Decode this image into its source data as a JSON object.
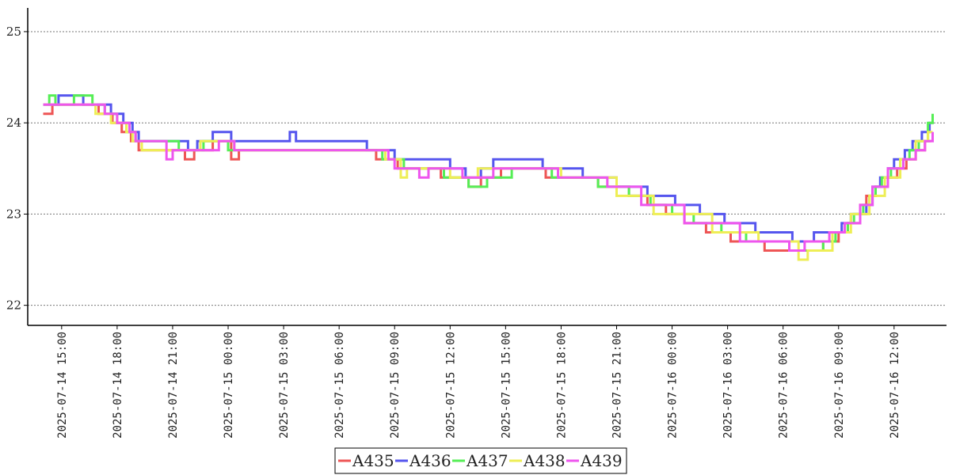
{
  "chart_data": {
    "type": "line",
    "step": true,
    "title": "",
    "xlabel": "",
    "ylabel": "",
    "x_axis": {
      "type": "datetime",
      "start": "2025-07-14 13:10",
      "end": "2025-07-16 14:50",
      "ticks": [
        {
          "t": "2025-07-14 15:00",
          "label": "2025-07-14 15:00"
        },
        {
          "t": "2025-07-14 18:00",
          "label": "2025-07-14 18:00"
        },
        {
          "t": "2025-07-14 21:00",
          "label": "2025-07-14 21:00"
        },
        {
          "t": "2025-07-15 00:00",
          "label": "2025-07-15 00:00"
        },
        {
          "t": "2025-07-15 03:00",
          "label": "2025-07-15 03:00"
        },
        {
          "t": "2025-07-15 06:00",
          "label": "2025-07-15 06:00"
        },
        {
          "t": "2025-07-15 09:00",
          "label": "2025-07-15 09:00"
        },
        {
          "t": "2025-07-15 12:00",
          "label": "2025-07-15 12:00"
        },
        {
          "t": "2025-07-15 15:00",
          "label": "2025-07-15 15:00"
        },
        {
          "t": "2025-07-15 18:00",
          "label": "2025-07-15 18:00"
        },
        {
          "t": "2025-07-15 21:00",
          "label": "2025-07-15 21:00"
        },
        {
          "t": "2025-07-16 00:00",
          "label": "2025-07-16 00:00"
        },
        {
          "t": "2025-07-16 03:00",
          "label": "2025-07-16 03:00"
        },
        {
          "t": "2025-07-16 06:00",
          "label": "2025-07-16 06:00"
        },
        {
          "t": "2025-07-16 09:00",
          "label": "2025-07-16 09:00"
        },
        {
          "t": "2025-07-16 12:00",
          "label": "2025-07-16 12:00"
        }
      ]
    },
    "y_axis": {
      "ylim": [
        21.78,
        25.26
      ],
      "ticks": [
        22,
        23,
        24,
        25
      ],
      "grid": true,
      "grid_style": "dotted"
    },
    "legend": {
      "placement": "bottom-center"
    },
    "series": [
      {
        "name": "A435",
        "color": "#ee5555",
        "points": [
          [
            "2025-07-14 14:00",
            24.1
          ],
          [
            "2025-07-14 14:30",
            24.2
          ],
          [
            "2025-07-14 17:00",
            24.1
          ],
          [
            "2025-07-14 17:45",
            24.0
          ],
          [
            "2025-07-14 18:15",
            23.9
          ],
          [
            "2025-07-14 18:45",
            23.8
          ],
          [
            "2025-07-14 19:10",
            23.7
          ],
          [
            "2025-07-14 21:40",
            23.6
          ],
          [
            "2025-07-14 22:10",
            23.7
          ],
          [
            "2025-07-14 23:10",
            23.8
          ],
          [
            "2025-07-15 00:10",
            23.6
          ],
          [
            "2025-07-15 00:35",
            23.7
          ],
          [
            "2025-07-15 08:00",
            23.6
          ],
          [
            "2025-07-15 09:10",
            23.5
          ],
          [
            "2025-07-15 11:30",
            23.4
          ],
          [
            "2025-07-15 13:00",
            23.3
          ],
          [
            "2025-07-15 13:40",
            23.4
          ],
          [
            "2025-07-15 14:45",
            23.5
          ],
          [
            "2025-07-15 17:10",
            23.4
          ],
          [
            "2025-07-15 20:00",
            23.3
          ],
          [
            "2025-07-15 21:40",
            23.2
          ],
          [
            "2025-07-15 22:40",
            23.1
          ],
          [
            "2025-07-15 23:40",
            23.0
          ],
          [
            "2025-07-16 00:40",
            22.9
          ],
          [
            "2025-07-16 01:50",
            22.8
          ],
          [
            "2025-07-16 03:10",
            22.7
          ],
          [
            "2025-07-16 05:00",
            22.6
          ],
          [
            "2025-07-16 08:10",
            22.7
          ],
          [
            "2025-07-16 09:00",
            22.8
          ],
          [
            "2025-07-16 09:30",
            22.9
          ],
          [
            "2025-07-16 10:10",
            23.1
          ],
          [
            "2025-07-16 10:30",
            23.2
          ],
          [
            "2025-07-16 11:00",
            23.3
          ],
          [
            "2025-07-16 11:40",
            23.4
          ],
          [
            "2025-07-16 12:10",
            23.5
          ],
          [
            "2025-07-16 12:40",
            23.6
          ],
          [
            "2025-07-16 13:10",
            23.7
          ],
          [
            "2025-07-16 13:40",
            23.8
          ],
          [
            "2025-07-16 14:00",
            23.8
          ]
        ]
      },
      {
        "name": "A436",
        "color": "#5555ee",
        "points": [
          [
            "2025-07-14 14:00",
            24.2
          ],
          [
            "2025-07-14 14:50",
            24.3
          ],
          [
            "2025-07-14 16:10",
            24.2
          ],
          [
            "2025-07-14 17:40",
            24.1
          ],
          [
            "2025-07-14 18:20",
            24.0
          ],
          [
            "2025-07-14 18:50",
            23.9
          ],
          [
            "2025-07-14 19:10",
            23.8
          ],
          [
            "2025-07-14 21:50",
            23.7
          ],
          [
            "2025-07-14 22:20",
            23.8
          ],
          [
            "2025-07-14 23:10",
            23.9
          ],
          [
            "2025-07-15 00:10",
            23.8
          ],
          [
            "2025-07-15 03:20",
            23.9
          ],
          [
            "2025-07-15 03:40",
            23.8
          ],
          [
            "2025-07-15 07:30",
            23.7
          ],
          [
            "2025-07-15 09:00",
            23.6
          ],
          [
            "2025-07-15 12:00",
            23.5
          ],
          [
            "2025-07-15 12:50",
            23.4
          ],
          [
            "2025-07-15 13:40",
            23.5
          ],
          [
            "2025-07-15 14:20",
            23.6
          ],
          [
            "2025-07-15 17:00",
            23.5
          ],
          [
            "2025-07-15 19:10",
            23.4
          ],
          [
            "2025-07-15 21:00",
            23.3
          ],
          [
            "2025-07-15 22:40",
            23.2
          ],
          [
            "2025-07-16 00:10",
            23.1
          ],
          [
            "2025-07-16 01:30",
            23.0
          ],
          [
            "2025-07-16 02:50",
            22.9
          ],
          [
            "2025-07-16 04:30",
            22.8
          ],
          [
            "2025-07-16 06:30",
            22.7
          ],
          [
            "2025-07-16 07:40",
            22.8
          ],
          [
            "2025-07-16 09:10",
            22.9
          ],
          [
            "2025-07-16 09:40",
            23.0
          ],
          [
            "2025-07-16 10:30",
            23.1
          ],
          [
            "2025-07-16 10:50",
            23.3
          ],
          [
            "2025-07-16 11:15",
            23.4
          ],
          [
            "2025-07-16 11:40",
            23.5
          ],
          [
            "2025-07-16 12:00",
            23.6
          ],
          [
            "2025-07-16 12:35",
            23.7
          ],
          [
            "2025-07-16 13:00",
            23.8
          ],
          [
            "2025-07-16 13:30",
            23.9
          ],
          [
            "2025-07-16 13:55",
            24.0
          ],
          [
            "2025-07-16 14:05",
            24.0
          ]
        ]
      },
      {
        "name": "A437",
        "color": "#55ee55",
        "points": [
          [
            "2025-07-14 14:00",
            24.2
          ],
          [
            "2025-07-14 14:20",
            24.3
          ],
          [
            "2025-07-14 14:40",
            24.2
          ],
          [
            "2025-07-14 15:40",
            24.3
          ],
          [
            "2025-07-14 16:40",
            24.2
          ],
          [
            "2025-07-14 17:20",
            24.1
          ],
          [
            "2025-07-14 18:00",
            24.0
          ],
          [
            "2025-07-14 18:30",
            23.9
          ],
          [
            "2025-07-14 19:00",
            23.8
          ],
          [
            "2025-07-14 21:20",
            23.7
          ],
          [
            "2025-07-14 22:40",
            23.8
          ],
          [
            "2025-07-15 00:00",
            23.7
          ],
          [
            "2025-07-15 07:00",
            23.7
          ],
          [
            "2025-07-15 08:20",
            23.6
          ],
          [
            "2025-07-15 09:30",
            23.5
          ],
          [
            "2025-07-15 11:40",
            23.4
          ],
          [
            "2025-07-15 13:00",
            23.3
          ],
          [
            "2025-07-15 14:00",
            23.4
          ],
          [
            "2025-07-15 15:20",
            23.5
          ],
          [
            "2025-07-15 17:30",
            23.4
          ],
          [
            "2025-07-15 20:00",
            23.3
          ],
          [
            "2025-07-15 21:40",
            23.2
          ],
          [
            "2025-07-15 22:50",
            23.1
          ],
          [
            "2025-07-16 00:00",
            23.0
          ],
          [
            "2025-07-16 01:10",
            22.9
          ],
          [
            "2025-07-16 02:40",
            22.8
          ],
          [
            "2025-07-16 04:00",
            22.7
          ],
          [
            "2025-07-16 06:20",
            22.6
          ],
          [
            "2025-07-16 08:10",
            22.7
          ],
          [
            "2025-07-16 08:50",
            22.8
          ],
          [
            "2025-07-16 09:30",
            22.9
          ],
          [
            "2025-07-16 09:50",
            23.0
          ],
          [
            "2025-07-16 10:20",
            23.1
          ],
          [
            "2025-07-16 10:40",
            23.2
          ],
          [
            "2025-07-16 11:00",
            23.3
          ],
          [
            "2025-07-16 11:20",
            23.4
          ],
          [
            "2025-07-16 11:50",
            23.5
          ],
          [
            "2025-07-16 12:20",
            23.6
          ],
          [
            "2025-07-16 12:50",
            23.7
          ],
          [
            "2025-07-16 13:20",
            23.8
          ],
          [
            "2025-07-16 13:50",
            24.0
          ],
          [
            "2025-07-16 14:05",
            24.1
          ]
        ]
      },
      {
        "name": "A438",
        "color": "#eeee55",
        "points": [
          [
            "2025-07-14 14:00",
            24.2
          ],
          [
            "2025-07-14 16:00",
            24.2
          ],
          [
            "2025-07-14 16:50",
            24.1
          ],
          [
            "2025-07-14 17:40",
            24.0
          ],
          [
            "2025-07-14 18:30",
            23.9
          ],
          [
            "2025-07-14 18:50",
            23.8
          ],
          [
            "2025-07-14 19:20",
            23.7
          ],
          [
            "2025-07-14 22:30",
            23.8
          ],
          [
            "2025-07-15 00:20",
            23.7
          ],
          [
            "2025-07-15 08:30",
            23.6
          ],
          [
            "2025-07-15 09:20",
            23.4
          ],
          [
            "2025-07-15 09:40",
            23.5
          ],
          [
            "2025-07-15 12:00",
            23.4
          ],
          [
            "2025-07-15 13:30",
            23.5
          ],
          [
            "2025-07-15 14:50",
            23.5
          ],
          [
            "2025-07-15 18:00",
            23.4
          ],
          [
            "2025-07-15 21:00",
            23.2
          ],
          [
            "2025-07-15 23:00",
            23.0
          ],
          [
            "2025-07-16 02:10",
            22.8
          ],
          [
            "2025-07-16 04:40",
            22.7
          ],
          [
            "2025-07-16 06:50",
            22.5
          ],
          [
            "2025-07-16 07:20",
            22.6
          ],
          [
            "2025-07-16 08:40",
            22.8
          ],
          [
            "2025-07-16 09:40",
            23.0
          ],
          [
            "2025-07-16 10:40",
            23.2
          ],
          [
            "2025-07-16 11:30",
            23.4
          ],
          [
            "2025-07-16 12:20",
            23.6
          ],
          [
            "2025-07-16 13:10",
            23.8
          ],
          [
            "2025-07-16 13:50",
            23.9
          ],
          [
            "2025-07-16 14:05",
            23.9
          ]
        ]
      },
      {
        "name": "A439",
        "color": "#ee55ee",
        "points": [
          [
            "2025-07-14 14:00",
            24.2
          ],
          [
            "2025-07-14 16:30",
            24.2
          ],
          [
            "2025-07-14 17:20",
            24.1
          ],
          [
            "2025-07-14 18:00",
            24.0
          ],
          [
            "2025-07-14 18:40",
            23.9
          ],
          [
            "2025-07-14 19:00",
            23.8
          ],
          [
            "2025-07-14 20:40",
            23.6
          ],
          [
            "2025-07-14 21:00",
            23.7
          ],
          [
            "2025-07-14 23:30",
            23.8
          ],
          [
            "2025-07-15 00:20",
            23.7
          ],
          [
            "2025-07-15 08:40",
            23.6
          ],
          [
            "2025-07-15 09:00",
            23.5
          ],
          [
            "2025-07-15 10:20",
            23.4
          ],
          [
            "2025-07-15 10:50",
            23.5
          ],
          [
            "2025-07-15 12:40",
            23.4
          ],
          [
            "2025-07-15 14:20",
            23.5
          ],
          [
            "2025-07-15 17:50",
            23.4
          ],
          [
            "2025-07-15 20:30",
            23.3
          ],
          [
            "2025-07-15 22:20",
            23.1
          ],
          [
            "2025-07-16 00:40",
            22.9
          ],
          [
            "2025-07-16 03:40",
            22.7
          ],
          [
            "2025-07-16 06:20",
            22.6
          ],
          [
            "2025-07-16 07:10",
            22.7
          ],
          [
            "2025-07-16 08:30",
            22.8
          ],
          [
            "2025-07-16 09:20",
            22.9
          ],
          [
            "2025-07-16 10:10",
            23.1
          ],
          [
            "2025-07-16 10:50",
            23.3
          ],
          [
            "2025-07-16 11:40",
            23.5
          ],
          [
            "2025-07-16 12:30",
            23.6
          ],
          [
            "2025-07-16 13:10",
            23.7
          ],
          [
            "2025-07-16 13:40",
            23.8
          ],
          [
            "2025-07-16 14:05",
            23.9
          ]
        ]
      }
    ]
  }
}
